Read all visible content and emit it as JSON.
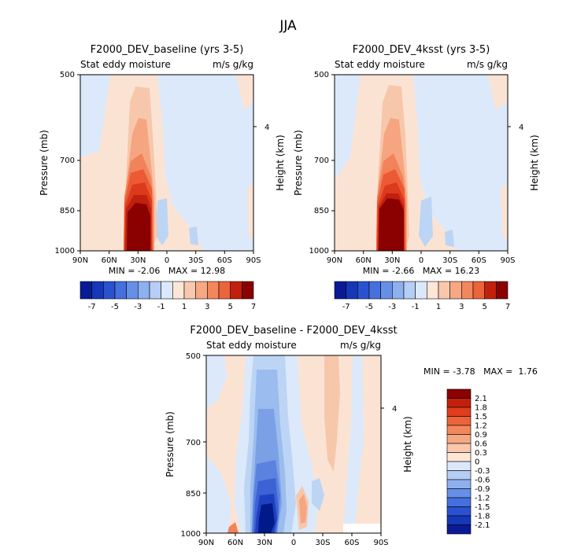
{
  "page_title": "JJA",
  "chart_data": [
    {
      "type": "heatmap",
      "title": "F2000_DEV_baseline (yrs 3-5)",
      "subtitle_left": "Stat eddy moisture",
      "subtitle_right": "m/s g/kg",
      "ylabel": "Pressure (mb)",
      "ylabel_right": "Height (km)",
      "y_ticks": [
        "500",
        "700",
        "850",
        "1000"
      ],
      "y_right_ticks": [
        "4"
      ],
      "x_ticks": [
        "90N",
        "60N",
        "30N",
        "0",
        "30S",
        "60S",
        "90S"
      ],
      "ylim": [
        1000,
        500
      ],
      "xlim": [
        "90N",
        "90S"
      ],
      "stats": "MIN = -2.06   MAX = 12.98",
      "min": -2.06,
      "max": 12.98,
      "colorbar": {
        "orientation": "horizontal",
        "labels": [
          "-7",
          "-5",
          "-3",
          "-1",
          "1",
          "3",
          "5",
          "7"
        ],
        "levels": [
          -7,
          -6,
          -5,
          -4,
          -3,
          -2,
          -1,
          0,
          1,
          2,
          3,
          4,
          5,
          6,
          7
        ]
      }
    },
    {
      "type": "heatmap",
      "title": "F2000_DEV_4ksst (yrs 3-5)",
      "subtitle_left": "Stat eddy moisture",
      "subtitle_right": "m/s g/kg",
      "ylabel": "Pressure (mb)",
      "ylabel_right": "Height (km)",
      "y_ticks": [
        "500",
        "700",
        "850",
        "1000"
      ],
      "y_right_ticks": [
        "4"
      ],
      "x_ticks": [
        "90N",
        "60N",
        "30N",
        "0",
        "30S",
        "60S",
        "90S"
      ],
      "ylim": [
        1000,
        500
      ],
      "xlim": [
        "90N",
        "90S"
      ],
      "stats": "MIN = -2.66   MAX = 16.23",
      "min": -2.66,
      "max": 16.23,
      "colorbar": {
        "orientation": "horizontal",
        "labels": [
          "-7",
          "-5",
          "-3",
          "-1",
          "1",
          "3",
          "5",
          "7"
        ],
        "levels": [
          -7,
          -6,
          -5,
          -4,
          -3,
          -2,
          -1,
          0,
          1,
          2,
          3,
          4,
          5,
          6,
          7
        ]
      }
    },
    {
      "type": "heatmap",
      "title": "F2000_DEV_baseline - F2000_DEV_4ksst",
      "subtitle_left": "Stat eddy moisture",
      "subtitle_right": "m/s g/kg",
      "ylabel": "Pressure (mb)",
      "ylabel_right": "Height (km)",
      "y_ticks": [
        "500",
        "700",
        "850",
        "1000"
      ],
      "y_right_ticks": [
        "4"
      ],
      "x_ticks": [
        "90N",
        "60N",
        "30N",
        "0",
        "30S",
        "60S",
        "90S"
      ],
      "ylim": [
        1000,
        500
      ],
      "xlim": [
        "90N",
        "90S"
      ],
      "stats": "MIN = -3.78   MAX =  1.76",
      "min": -3.78,
      "max": 1.76,
      "colorbar": {
        "orientation": "vertical",
        "labels": [
          "2.1",
          "1.8",
          "1.5",
          "1.2",
          "0.9",
          "0.6",
          "0.3",
          "0",
          "-0.3",
          "-0.6",
          "-0.9",
          "-1.2",
          "-1.5",
          "-1.8",
          "-2.1"
        ],
        "levels": [
          2.1,
          1.8,
          1.5,
          1.2,
          0.9,
          0.6,
          0.3,
          0,
          -0.3,
          -0.6,
          -0.9,
          -1.2,
          -1.5,
          -1.8,
          -2.1
        ]
      }
    }
  ],
  "colors": {
    "warm": [
      "#fbe3d4",
      "#f7c7ac",
      "#f5a680",
      "#f2825a",
      "#ec5a34",
      "#dc3a1c",
      "#c0200e",
      "#8b0000"
    ],
    "cool": [
      "#dbe9fb",
      "#bcd5f5",
      "#9bbcee",
      "#7ba0e6",
      "#5a82de",
      "#3c62d4",
      "#1f40c0",
      "#001a8a"
    ],
    "neg_colorbar": [
      "#0a1a96",
      "#1537b8",
      "#2a52d0",
      "#4570de",
      "#6690e8",
      "#8fb0ef",
      "#b6cdf5",
      "#dbe8fb"
    ],
    "pos_colorbar": [
      "#fde6d6",
      "#f9c7ad",
      "#f6a883",
      "#f2875d",
      "#ec6439",
      "#e03d1c",
      "#c3200c",
      "#8b0000"
    ]
  }
}
